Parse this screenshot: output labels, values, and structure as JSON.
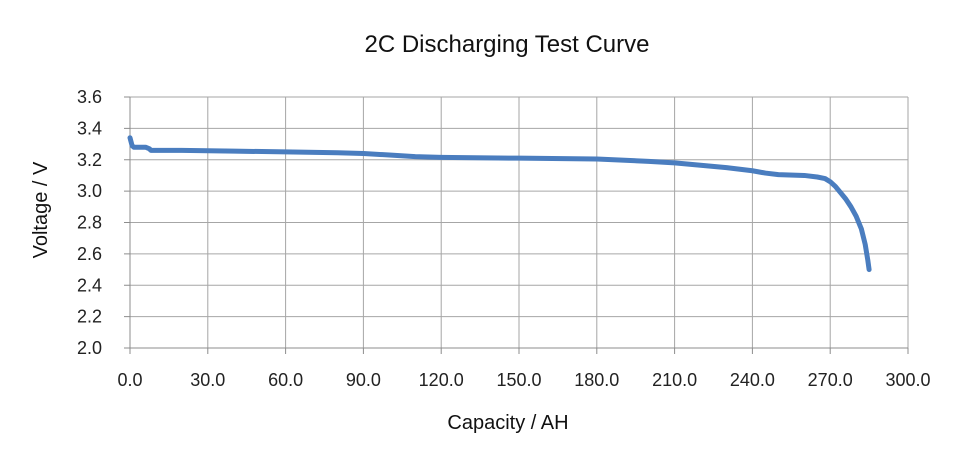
{
  "chart_data": {
    "type": "line",
    "title": "2C Discharging Test Curve",
    "xlabel": "Capacity / AH",
    "ylabel": "Voltage / V",
    "xlim": [
      0,
      300
    ],
    "ylim": [
      2.0,
      3.6
    ],
    "x_ticks": [
      "0.0",
      "30.0",
      "60.0",
      "90.0",
      "120.0",
      "150.0",
      "180.0",
      "210.0",
      "240.0",
      "270.0",
      "300.0"
    ],
    "y_ticks": [
      "2.0",
      "2.2",
      "2.4",
      "2.6",
      "2.8",
      "3.0",
      "3.2",
      "3.4",
      "3.6"
    ],
    "grid": true,
    "line_color": "#4a7dbf",
    "series": [
      {
        "x": [
          0.0,
          0.8,
          1.5,
          2.5,
          4.0,
          6.0,
          7.5,
          8.0,
          10.0,
          20.0,
          40.0,
          60.0,
          80.0,
          90.0,
          100.0,
          110.0,
          120.0,
          150.0,
          180.0,
          200.0,
          210.0,
          220.0,
          230.0,
          240.0,
          245.0,
          250.0,
          260.0,
          265.0,
          268.0,
          270.0,
          272.0,
          274.0,
          276.0,
          278.0,
          280.0,
          282.0,
          283.5,
          284.5,
          285.0
        ],
        "y": [
          3.34,
          3.29,
          3.28,
          3.28,
          3.28,
          3.28,
          3.27,
          3.26,
          3.26,
          3.26,
          3.255,
          3.25,
          3.245,
          3.24,
          3.23,
          3.22,
          3.215,
          3.21,
          3.205,
          3.19,
          3.18,
          3.165,
          3.15,
          3.13,
          3.115,
          3.105,
          3.1,
          3.09,
          3.08,
          3.06,
          3.03,
          2.99,
          2.95,
          2.9,
          2.84,
          2.76,
          2.66,
          2.56,
          2.5
        ]
      }
    ]
  }
}
